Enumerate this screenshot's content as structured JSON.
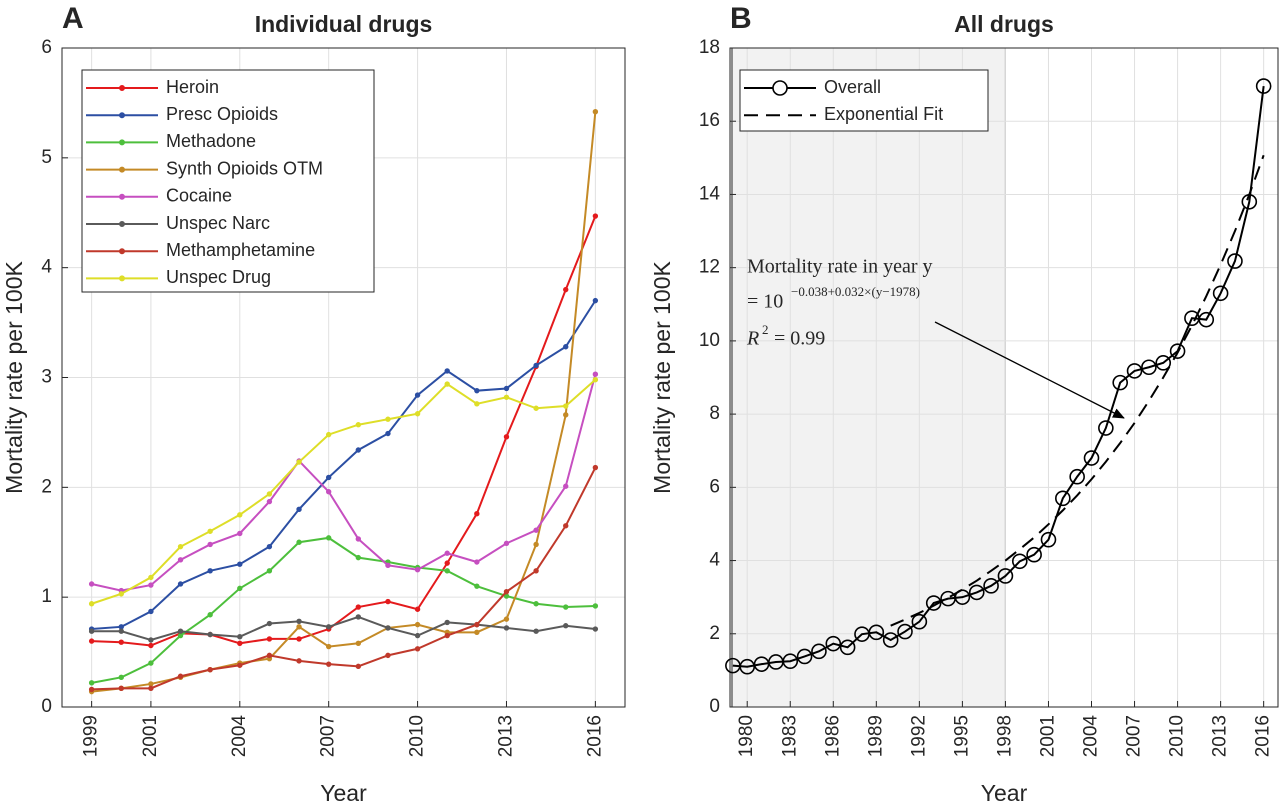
{
  "chart_data": [
    {
      "type": "line",
      "panel": "A",
      "title": "Individual drugs",
      "x_label": "Year",
      "y_label": "Mortality rate per 100K",
      "xlim": [
        1998,
        2017
      ],
      "ylim": [
        0,
        6
      ],
      "xticks": [
        1999,
        2001,
        2004,
        2007,
        2010,
        2013,
        2016
      ],
      "yticks": [
        0,
        1,
        2,
        3,
        4,
        5,
        6
      ],
      "grid": true,
      "legend": "upper-left",
      "marker": "dot",
      "x": [
        1999,
        2000,
        2001,
        2002,
        2003,
        2004,
        2005,
        2006,
        2007,
        2008,
        2009,
        2010,
        2011,
        2012,
        2013,
        2014,
        2015,
        2016
      ],
      "series": [
        {
          "name": "Heroin",
          "color": "#e41a1c",
          "values": [
            0.6,
            0.59,
            0.56,
            0.67,
            0.66,
            0.58,
            0.62,
            0.62,
            0.71,
            0.91,
            0.96,
            0.89,
            1.31,
            1.76,
            2.46,
            3.1,
            3.8,
            4.47
          ]
        },
        {
          "name": "Presc Opioids",
          "color": "#2c4fa3",
          "values": [
            0.71,
            0.73,
            0.87,
            1.12,
            1.24,
            1.3,
            1.46,
            1.8,
            2.09,
            2.34,
            2.49,
            2.84,
            3.06,
            2.88,
            2.9,
            3.11,
            3.28,
            3.7
          ]
        },
        {
          "name": "Methadone",
          "color": "#4dbf3c",
          "values": [
            0.22,
            0.27,
            0.4,
            0.65,
            0.84,
            1.08,
            1.24,
            1.5,
            1.54,
            1.36,
            1.32,
            1.27,
            1.24,
            1.1,
            1.01,
            0.94,
            0.91,
            0.92
          ]
        },
        {
          "name": "Synth Opioids OTM",
          "color": "#c48a26",
          "values": [
            0.14,
            0.17,
            0.21,
            0.27,
            0.34,
            0.4,
            0.44,
            0.73,
            0.55,
            0.58,
            0.72,
            0.75,
            0.68,
            0.68,
            0.8,
            1.48,
            2.66,
            5.42
          ]
        },
        {
          "name": "Cocaine",
          "color": "#c64fc0",
          "values": [
            1.12,
            1.06,
            1.11,
            1.34,
            1.48,
            1.58,
            1.87,
            2.24,
            1.96,
            1.53,
            1.29,
            1.25,
            1.4,
            1.32,
            1.49,
            1.61,
            2.01,
            3.03
          ]
        },
        {
          "name": "Unspec Narc",
          "color": "#5a5a5a",
          "values": [
            0.69,
            0.69,
            0.61,
            0.69,
            0.66,
            0.64,
            0.76,
            0.78,
            0.73,
            0.82,
            0.72,
            0.65,
            0.77,
            0.75,
            0.72,
            0.69,
            0.74,
            0.71
          ]
        },
        {
          "name": "Methamphetamine",
          "color": "#c0392b",
          "values": [
            0.16,
            0.17,
            0.17,
            0.28,
            0.34,
            0.38,
            0.47,
            0.42,
            0.39,
            0.37,
            0.47,
            0.53,
            0.65,
            0.75,
            1.05,
            1.24,
            1.65,
            2.18
          ]
        },
        {
          "name": "Unspec Drug",
          "color": "#dede28",
          "values": [
            0.94,
            1.03,
            1.18,
            1.46,
            1.6,
            1.75,
            1.94,
            2.23,
            2.48,
            2.57,
            2.62,
            2.67,
            2.94,
            2.76,
            2.82,
            2.72,
            2.74,
            2.98
          ]
        }
      ]
    },
    {
      "type": "line",
      "panel": "B",
      "title": "All drugs",
      "x_label": "Year",
      "y_label": "Mortality rate per 100K",
      "xlim": [
        1978.8,
        2017
      ],
      "ylim": [
        0,
        18
      ],
      "xticks": [
        1980,
        1983,
        1986,
        1989,
        1992,
        1995,
        1998,
        2001,
        2004,
        2007,
        2010,
        2013,
        2016
      ],
      "yticks": [
        0,
        2,
        4,
        6,
        8,
        10,
        12,
        14,
        16,
        18
      ],
      "grid": true,
      "legend": "upper-left",
      "shaded_x": [
        1978.8,
        1998
      ],
      "annotation": {
        "line1": "Mortality rate in year y",
        "base": "= 10",
        "exponent": "−0.038+0.032×(y−1978)",
        "r2_symbol": "R",
        "r2_power": "2",
        "r2_value": "= 0.99"
      },
      "series": [
        {
          "name": "Overall",
          "color": "#000000",
          "marker": "circle",
          "dash": false,
          "x": [
            1979,
            1980,
            1981,
            1982,
            1983,
            1984,
            1985,
            1986,
            1987,
            1988,
            1989,
            1990,
            1991,
            1992,
            1993,
            1994,
            1995,
            1996,
            1997,
            1998,
            1999,
            2000,
            2001,
            2002,
            2003,
            2004,
            2005,
            2006,
            2007,
            2008,
            2009,
            2010,
            2011,
            2012,
            2013,
            2014,
            2015,
            2016
          ],
          "values": [
            1.13,
            1.1,
            1.17,
            1.23,
            1.25,
            1.38,
            1.52,
            1.73,
            1.63,
            1.99,
            2.04,
            1.83,
            2.06,
            2.33,
            2.84,
            2.96,
            3.0,
            3.13,
            3.31,
            3.58,
            3.98,
            4.16,
            4.57,
            5.7,
            6.29,
            6.8,
            7.62,
            8.86,
            9.18,
            9.28,
            9.4,
            9.72,
            10.62,
            10.58,
            11.3,
            12.18,
            13.8,
            16.96
          ]
        },
        {
          "name": "Exponential Fit",
          "color": "#000000",
          "marker": "none",
          "dash": true,
          "x": [
            1990,
            1991,
            1992,
            1993,
            1994,
            1995,
            1996,
            1997,
            1998,
            1999,
            2000,
            2001,
            2002,
            2003,
            2004,
            2005,
            2006,
            2007,
            2008,
            2009,
            2010,
            2011,
            2012,
            2013,
            2014,
            2015,
            2016
          ],
          "values": [
            2.22,
            2.39,
            2.57,
            2.77,
            2.98,
            3.21,
            3.45,
            3.72,
            4.0,
            4.31,
            4.63,
            4.99,
            5.37,
            5.78,
            6.22,
            6.7,
            7.21,
            7.76,
            8.36,
            9.0,
            9.68,
            10.42,
            11.22,
            12.08,
            13.0,
            14.0,
            15.07
          ]
        }
      ]
    }
  ]
}
